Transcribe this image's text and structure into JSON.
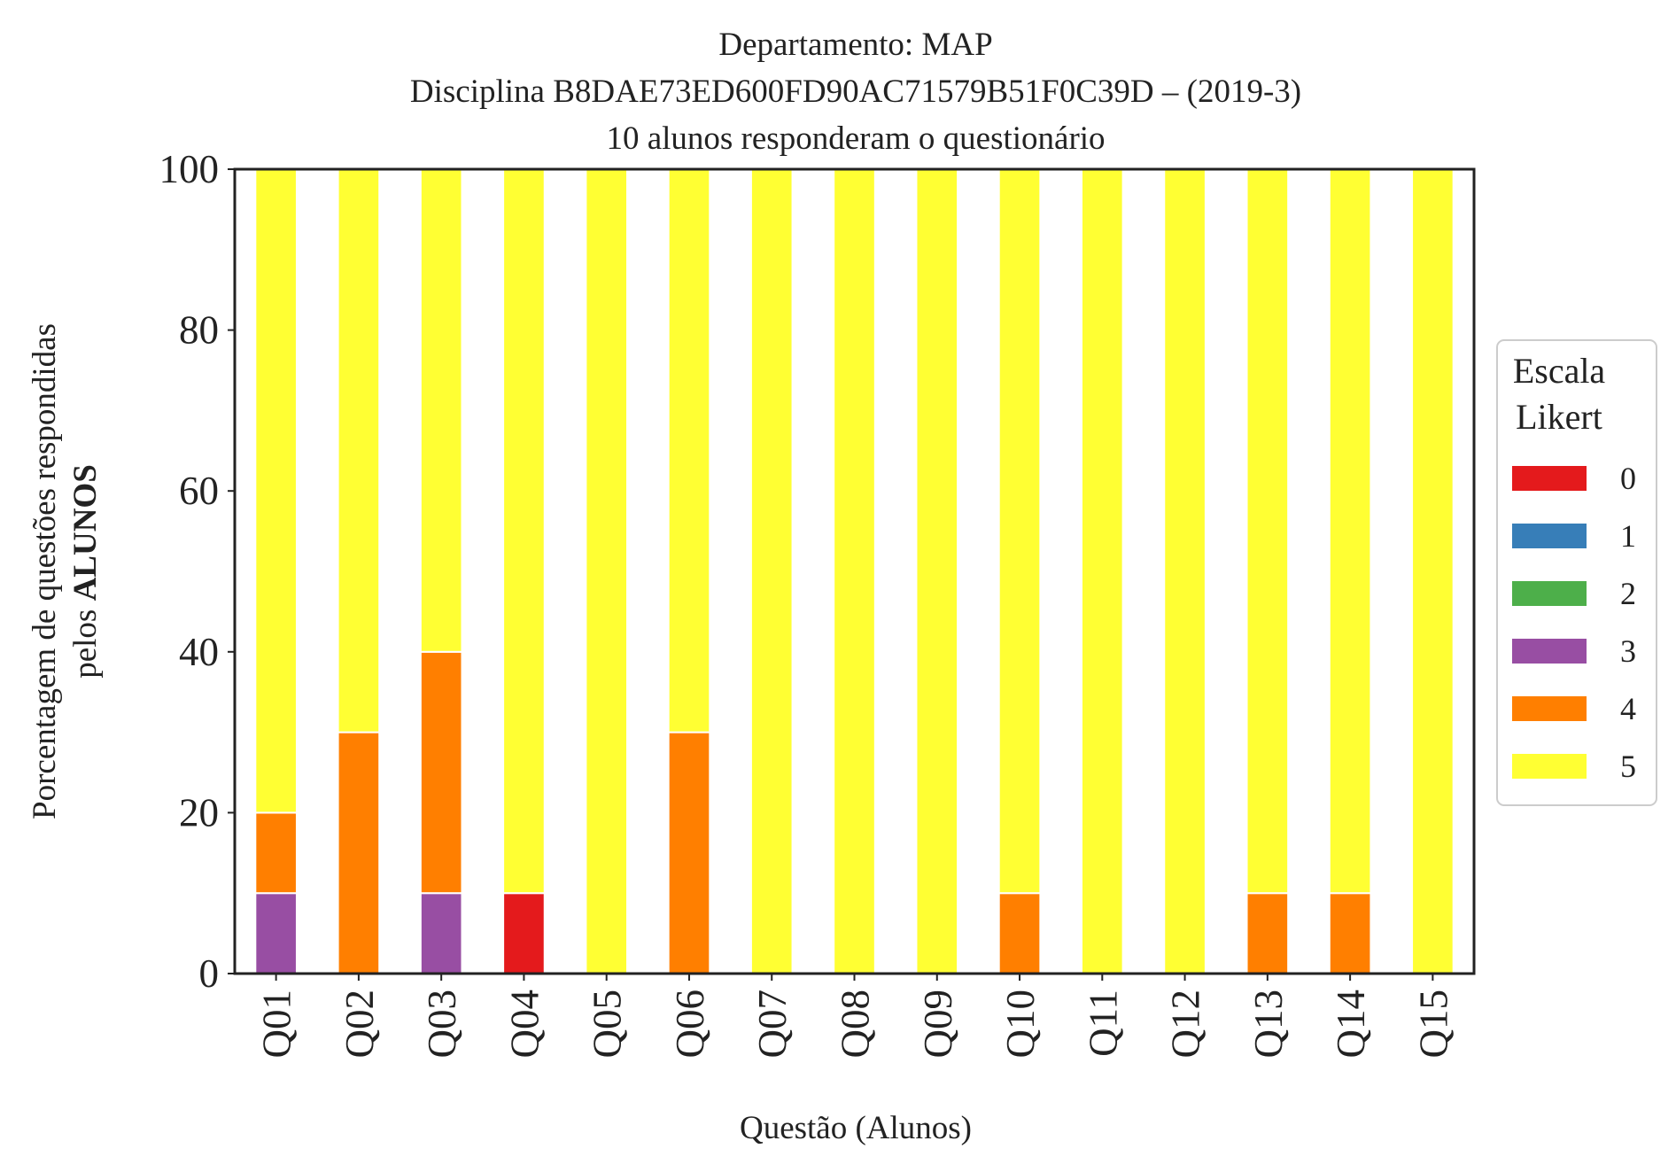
{
  "chart_data": {
    "type": "bar",
    "stacked": true,
    "title_lines": [
      "Departamento: MAP",
      "Disciplina B8DAE73ED600FD90AC71579B51F0C39D – (2019-3)",
      "10 alunos responderam o questionário"
    ],
    "xlabel": "Questão (Alunos)",
    "ylabel_line1": "Porcentagem de questões respondidas",
    "ylabel_line2_prefix": "pelos ",
    "ylabel_line2_bold": "ALUNOS",
    "ylim": [
      0,
      100
    ],
    "yticks": [
      "0",
      "20",
      "40",
      "60",
      "80",
      "100"
    ],
    "grid": false,
    "legend_placement": "right",
    "legend_title_lines": [
      "Escala",
      "Likert"
    ],
    "categories": [
      "Q01",
      "Q02",
      "Q03",
      "Q04",
      "Q05",
      "Q06",
      "Q07",
      "Q08",
      "Q09",
      "Q10",
      "Q11",
      "Q12",
      "Q13",
      "Q14",
      "Q15"
    ],
    "series": [
      {
        "name": "0",
        "color": "#e41a1c",
        "values": [
          0,
          0,
          0,
          10,
          0,
          0,
          0,
          0,
          0,
          0,
          0,
          0,
          0,
          0,
          0
        ]
      },
      {
        "name": "1",
        "color": "#377eb8",
        "values": [
          0,
          0,
          0,
          0,
          0,
          0,
          0,
          0,
          0,
          0,
          0,
          0,
          0,
          0,
          0
        ]
      },
      {
        "name": "2",
        "color": "#4daf4a",
        "values": [
          0,
          0,
          0,
          0,
          0,
          0,
          0,
          0,
          0,
          0,
          0,
          0,
          0,
          0,
          0
        ]
      },
      {
        "name": "3",
        "color": "#984ea3",
        "values": [
          10,
          0,
          10,
          0,
          0,
          0,
          0,
          0,
          0,
          0,
          0,
          0,
          0,
          0,
          0
        ]
      },
      {
        "name": "4",
        "color": "#ff7f00",
        "values": [
          10,
          30,
          30,
          0,
          0,
          30,
          0,
          0,
          0,
          10,
          0,
          0,
          10,
          10,
          0
        ]
      },
      {
        "name": "5",
        "color": "#ffff33",
        "values": [
          80,
          70,
          60,
          90,
          100,
          70,
          100,
          100,
          100,
          90,
          100,
          100,
          90,
          90,
          100
        ]
      }
    ]
  }
}
